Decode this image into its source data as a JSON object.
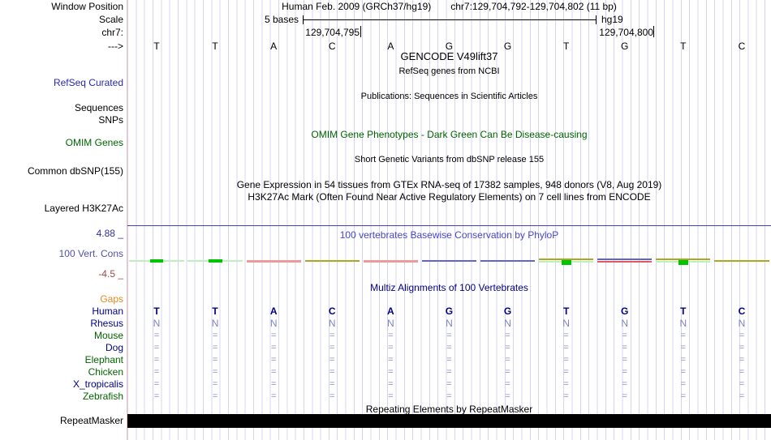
{
  "header": {
    "assembly_title": "Human Feb. 2009 (GRCh37/hg19)",
    "position_title": "chr7:129,704,792-129,704,802 (11 bp)",
    "scale_label": "5 bases",
    "assembly_short": "hg19"
  },
  "left_labels": {
    "window_position": "Window Position",
    "scale": "Scale",
    "chrom": "chr7:",
    "strand": "--->",
    "refseq": "RefSeq Curated",
    "sequences": "Sequences",
    "snps": "SNPs",
    "omim": "OMIM Genes",
    "dbsnp": "Common dbSNP(155)",
    "h3k27ac": "Layered H3K27Ac",
    "cons_max": "4.88 _",
    "cons_name": "100 Vert. Cons",
    "cons_min": "-4.5 _",
    "repeatmasker": "RepeatMasker"
  },
  "ruler": {
    "tick_left": "129,704,795",
    "tick_right": "129,704,800"
  },
  "sequence": {
    "bases": [
      "T",
      "T",
      "A",
      "C",
      "A",
      "G",
      "G",
      "T",
      "G",
      "T",
      "C"
    ]
  },
  "track_titles": {
    "gencode": "GENCODE V49lift37",
    "refseq_sub": "RefSeq genes from NCBI",
    "publications": "Publications: Sequences in Scientific Articles",
    "omim": "OMIM Gene Phenotypes - Dark Green Can Be Disease-causing",
    "dbsnp": "Short Genetic Variants from dbSNP release 155",
    "gtex": "Gene Expression in 54 tissues from GTEx RNA-seq of 17382 samples, 948 donors (V8, Aug 2019)",
    "h3k27ac": "H3K27Ac Mark (Often Found Near Active Regulatory Elements) on 7 cell lines from ENCODE",
    "phylop": "100 vertebrates Basewise Conservation by PhyloP",
    "multiz": "Multiz Alignments of 100 Vertebrates",
    "repeatmasker": "Repeating Elements by RepeatMasker"
  },
  "conservation": {
    "segments": [
      "green_dash",
      "green_dash",
      "pink",
      "olive",
      "pink",
      "blue",
      "blue",
      "olive_green",
      "blue_red",
      "olive_green",
      "olive"
    ]
  },
  "multiz": {
    "rows": [
      {
        "label": "Gaps",
        "color": "#e08a1e",
        "style": "none",
        "cells": [
          "",
          "",
          "",
          "",
          "",
          "",
          "",
          "",
          "",
          "",
          ""
        ]
      },
      {
        "label": "Human",
        "color": "#00008b",
        "style": "human",
        "cells": [
          "T",
          "T",
          "A",
          "C",
          "A",
          "G",
          "G",
          "T",
          "G",
          "T",
          "C"
        ]
      },
      {
        "label": "Rhesus",
        "color": "#00008b",
        "style": "faint",
        "cells": [
          "N",
          "N",
          "N",
          "N",
          "N",
          "N",
          "N",
          "N",
          "N",
          "N",
          "N"
        ]
      },
      {
        "label": "Mouse",
        "color": "#006400",
        "style": "eq",
        "cells": [
          "=",
          "=",
          "=",
          "=",
          "=",
          "=",
          "=",
          "=",
          "=",
          "=",
          "="
        ]
      },
      {
        "label": "Dog",
        "color": "#00008b",
        "style": "eq",
        "cells": [
          "=",
          "=",
          "=",
          "=",
          "=",
          "=",
          "=",
          "=",
          "=",
          "=",
          "="
        ]
      },
      {
        "label": "Elephant",
        "color": "#006400",
        "style": "eq",
        "cells": [
          "=",
          "=",
          "=",
          "=",
          "=",
          "=",
          "=",
          "=",
          "=",
          "=",
          "="
        ]
      },
      {
        "label": "Chicken",
        "color": "#006400",
        "style": "eq",
        "cells": [
          "=",
          "=",
          "=",
          "=",
          "=",
          "=",
          "=",
          "=",
          "=",
          "=",
          "="
        ]
      },
      {
        "label": "X_tropicalis",
        "color": "#00008b",
        "style": "eq",
        "cells": [
          "=",
          "=",
          "=",
          "=",
          "=",
          "=",
          "=",
          "=",
          "=",
          "=",
          "="
        ]
      },
      {
        "label": "Zebrafish",
        "color": "#006400",
        "style": "eq",
        "cells": [
          "=",
          "=",
          "=",
          "=",
          "=",
          "=",
          "=",
          "=",
          "=",
          "=",
          "="
        ]
      }
    ]
  },
  "colors": {
    "grid": "#cdcdee",
    "track_edge_pink": "#f2bcbc",
    "divider_blue": "#4242b4",
    "cons_pale_green": "#bfeebf",
    "cons_bright_green": "#00c400",
    "cons_pink": "#ef9a9a",
    "cons_olive": "#aaaa1e",
    "cons_blue": "#6363c8",
    "cons_red": "#e05a5a",
    "repeat_bar": "#000000"
  }
}
